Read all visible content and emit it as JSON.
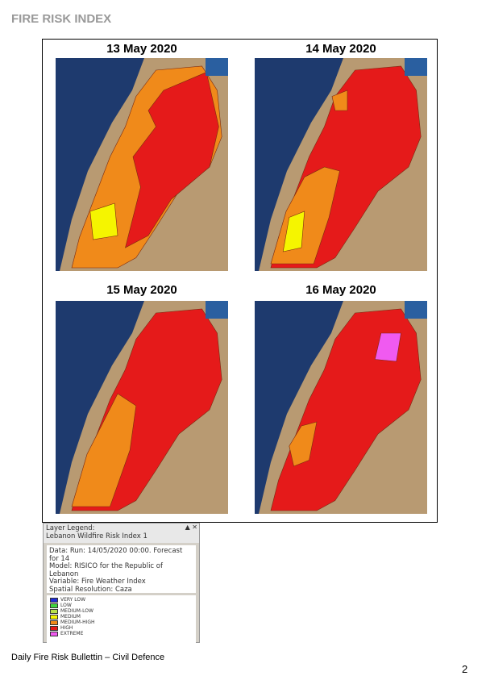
{
  "header": {
    "title": "FIRE RISK INDEX"
  },
  "maps": [
    {
      "date": "13 May 2020"
    },
    {
      "date": "14 May 2020"
    },
    {
      "date": "15 May 2020"
    },
    {
      "date": "16 May 2020"
    }
  ],
  "legend": {
    "header": "Layer Legend:",
    "layer": "Lebanon Wildfire Risk Index 1",
    "info": [
      "Data: Run: 14/05/2020 00:00. Forecast for 14",
      "Model: RISICO for the Republic of Lebanon",
      "Variable: Fire Weather Index",
      "Spatial Resolution: Caza"
    ],
    "items": [
      {
        "label": "VERY LOW",
        "color": "#1f2bd6"
      },
      {
        "label": "LOW",
        "color": "#3fd43f"
      },
      {
        "label": "MEDIUM-LOW",
        "color": "#b8e04a"
      },
      {
        "label": "MEDIUM",
        "color": "#f5f500"
      },
      {
        "label": "MEDIUM-HIGH",
        "color": "#f08a1a"
      },
      {
        "label": "HIGH",
        "color": "#e51a1a"
      },
      {
        "label": "EXTREME",
        "color": "#f05af0"
      }
    ]
  },
  "footer": {
    "text": "Daily Fire Risk Bullettin – Civil Defence",
    "page": "2"
  }
}
